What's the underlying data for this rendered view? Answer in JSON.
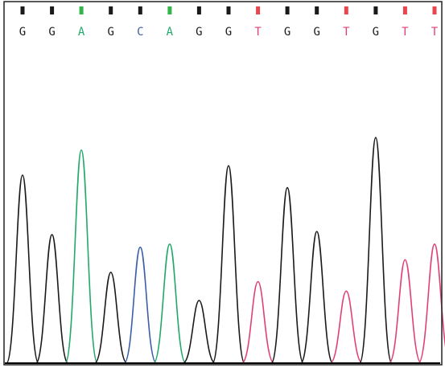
{
  "chart_data": {
    "type": "line",
    "title": "",
    "xlabel": "",
    "ylabel": "",
    "sequence": [
      "G",
      "G",
      "A",
      "G",
      "C",
      "A",
      "G",
      "G",
      "T",
      "G",
      "G",
      "T",
      "G",
      "T",
      "T"
    ],
    "peaks": [
      {
        "base": "G",
        "height": 0.6
      },
      {
        "base": "G",
        "height": 0.41
      },
      {
        "base": "A",
        "height": 0.68
      },
      {
        "base": "G",
        "height": 0.29
      },
      {
        "base": "C",
        "height": 0.37
      },
      {
        "base": "A",
        "height": 0.38
      },
      {
        "base": "G",
        "height": 0.2
      },
      {
        "base": "G",
        "height": 0.63
      },
      {
        "base": "T",
        "height": 0.26
      },
      {
        "base": "G",
        "height": 0.56
      },
      {
        "base": "G",
        "height": 0.42
      },
      {
        "base": "T",
        "height": 0.23
      },
      {
        "base": "G",
        "height": 0.72
      },
      {
        "base": "T",
        "height": 0.33
      },
      {
        "base": "T",
        "height": 0.38
      }
    ],
    "base_colors": {
      "G": "#1a1a1a",
      "A": "#22a86a",
      "C": "#3a5fa8",
      "T": "#e0407a"
    },
    "marker_colors": {
      "G": "#1a1a1a",
      "A": "#33b54a",
      "C": "#1a1a1a",
      "T": "#e8474f"
    },
    "grid": false,
    "legend": "none"
  }
}
